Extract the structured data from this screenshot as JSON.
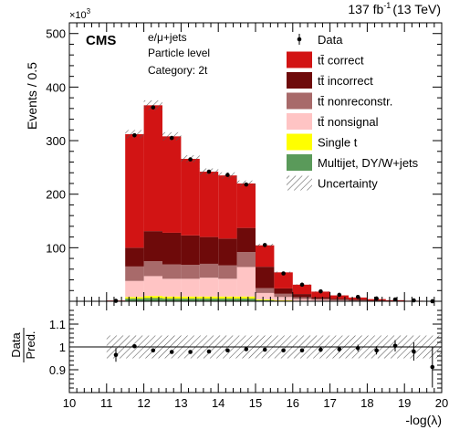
{
  "header": {
    "lumi": "137 fb",
    "lumi_exp": "-1",
    "lumi_energy": "(13 TeV)",
    "experiment": "CMS",
    "info_lines": [
      "e/μ+jets",
      "Particle level",
      "Category: 2t"
    ]
  },
  "colors": {
    "tt_correct": "#d21414",
    "tt_incorrect": "#6e0a0a",
    "tt_nonreconstr": "#a86a6a",
    "tt_nonsignal": "#ffc4c4",
    "single_t": "#ffff00",
    "multijet": "#5a9a5a"
  },
  "chart_data": [
    {
      "type": "area",
      "title": "",
      "xlabel": "",
      "ylabel": "Events / 0.5",
      "y_exponent": "×10",
      "y_exponent_power": "3",
      "xlim": [
        10,
        20
      ],
      "ylim": [
        0,
        520
      ],
      "yticks": [
        "100",
        "200",
        "300",
        "400",
        "500"
      ],
      "bin_edges": [
        10,
        10.5,
        11,
        11.5,
        12,
        12.5,
        13,
        13.5,
        14,
        14.5,
        15,
        15.5,
        16,
        16.5,
        17,
        17.5,
        18,
        18.5,
        19,
        19.5,
        20
      ],
      "series": [
        {
          "name": "Multijet, DY/W+jets",
          "key": "multijet",
          "values": [
            0,
            0,
            0.1,
            5,
            6,
            5,
            5,
            5,
            5,
            5,
            2,
            1,
            0.5,
            0.3,
            0.2,
            0.1,
            0.1,
            0,
            0,
            0
          ]
        },
        {
          "name": "Single t",
          "key": "single_t",
          "values": [
            0,
            0,
            0.1,
            3,
            4,
            4,
            4,
            4,
            4,
            4,
            1.5,
            1,
            0.5,
            0.3,
            0.2,
            0.1,
            0.1,
            0,
            0,
            0
          ]
        },
        {
          "name": "tt̄ nonsignal",
          "key": "tt_nonsignal",
          "values": [
            0,
            0,
            0.2,
            30,
            37,
            33,
            33,
            35,
            33,
            55,
            12,
            6,
            3,
            2,
            1,
            0.8,
            0.4,
            0.2,
            0.1,
            0
          ]
        },
        {
          "name": "tt̄ nonreconstr.",
          "key": "tt_nonreconstr",
          "values": [
            0,
            0,
            0.2,
            27,
            28,
            27,
            26,
            26,
            25,
            28,
            9,
            6,
            3.5,
            2,
            1.5,
            1,
            0.5,
            0.2,
            0.1,
            0
          ]
        },
        {
          "name": "tt̄ incorrect",
          "key": "tt_incorrect",
          "values": [
            0,
            0,
            0.3,
            35,
            56,
            59,
            55,
            50,
            50,
            45,
            40,
            10,
            6,
            3,
            2,
            1.5,
            0.6,
            0.3,
            0.1,
            0
          ]
        },
        {
          "name": "tt̄ correct",
          "key": "tt_correct",
          "values": [
            0,
            0,
            0.5,
            212,
            235,
            180,
            143,
            122,
            118,
            83,
            40,
            30,
            17.5,
            10.4,
            6.1,
            3.5,
            2.3,
            1.3,
            0.7,
            0.1
          ]
        }
      ],
      "uncertainty_rel": 0.025,
      "data": {
        "name": "Data",
        "x": [
          11.25,
          11.75,
          12.25,
          12.75,
          13.25,
          13.75,
          14.25,
          14.75,
          15.25,
          15.75,
          16.25,
          16.75,
          17.25,
          17.75,
          18.25,
          18.75,
          19.25,
          19.75
        ],
        "y": [
          0.8,
          310,
          362,
          305,
          265,
          242,
          236,
          218,
          105,
          52,
          31,
          18.5,
          12,
          8,
          5.2,
          3.4,
          1.6,
          0.1
        ]
      },
      "legend": {
        "placement": "top-right",
        "entries": [
          "Data",
          "tt̄ correct",
          "tt̄ incorrect",
          "tt̄ nonreconstr.",
          "tt̄ nonsignal",
          "Single t",
          "Multijet, DY/W+jets",
          "Uncertainty"
        ]
      }
    },
    {
      "type": "scatter",
      "title": "",
      "xlabel": "-log(λ)",
      "ylabel_top": "Data",
      "ylabel_bottom": "Pred.",
      "xlim": [
        10,
        20
      ],
      "ylim": [
        0.8,
        1.2
      ],
      "xticks": [
        "10",
        "11",
        "12",
        "13",
        "14",
        "15",
        "16",
        "17",
        "18",
        "19",
        "20"
      ],
      "yticks": [
        "0.9",
        "1",
        "1.1"
      ],
      "band_lo": 0.95,
      "band_hi": 1.05,
      "x": [
        11.25,
        11.75,
        12.25,
        12.75,
        13.25,
        13.75,
        14.25,
        14.75,
        15.25,
        15.75,
        16.25,
        16.75,
        17.25,
        17.75,
        18.25,
        18.75,
        19.25,
        19.75
      ],
      "y": [
        0.965,
        1.003,
        0.985,
        0.978,
        0.978,
        0.98,
        0.985,
        0.99,
        0.988,
        0.985,
        0.985,
        0.988,
        0.99,
        0.995,
        0.985,
        1.005,
        0.98,
        0.912
      ],
      "err": [
        0.03,
        0.004,
        0.004,
        0.004,
        0.004,
        0.004,
        0.004,
        0.004,
        0.005,
        0.006,
        0.008,
        0.01,
        0.012,
        0.015,
        0.018,
        0.025,
        0.04,
        0.09
      ]
    }
  ]
}
